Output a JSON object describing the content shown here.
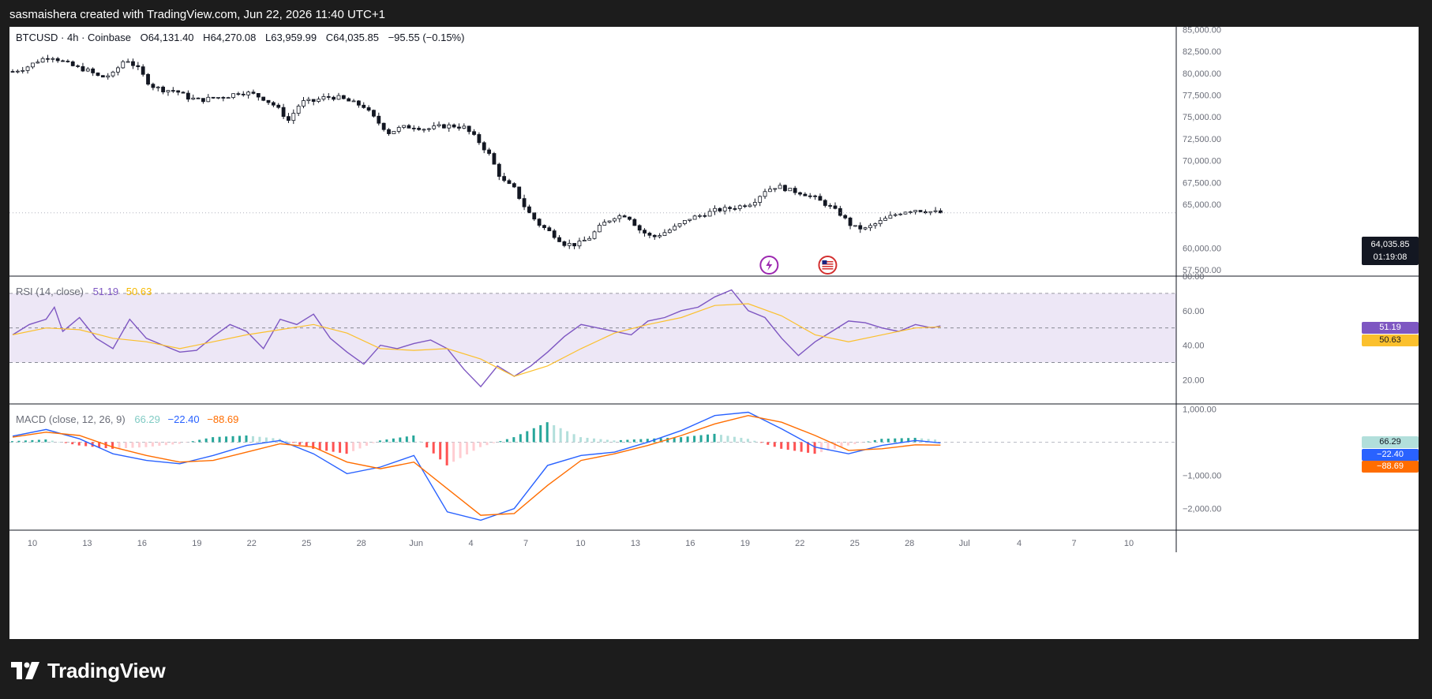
{
  "header": {
    "attribution": "sasmaishera created with TradingView.com, Jun 22, 2026 11:40 UTC+1"
  },
  "footer": {
    "brand": "TradingView"
  },
  "price_legend": {
    "symbol": "BTCUSD · 4h · Coinbase",
    "open_label": "O",
    "open": "64,131.40",
    "high_label": "H",
    "high": "64,270.08",
    "low_label": "L",
    "low": "63,959.99",
    "close_label": "C",
    "close": "64,035.85",
    "change": "−95.55 (−0.15%)"
  },
  "rsi_legend": {
    "name": "RSI (14, close)",
    "value": "51.19",
    "ma": "50.63"
  },
  "macd_legend": {
    "name": "MACD (close, 12, 26, 9)",
    "hist": "66.29",
    "macd": "−22.40",
    "signal": "−88.69"
  },
  "price_axis": {
    "last_price": "64,035.85",
    "countdown": "01:19:08"
  },
  "rsi_axis": {
    "rsi_badge": "51.19",
    "ma_badge": "50.63"
  },
  "macd_axis": {
    "hist_badge": "66.29",
    "macd_badge": "−22.40",
    "signal_badge": "−88.69"
  },
  "colors": {
    "bg": "#1c1c1c",
    "candle": "#131722",
    "rsi": "#7e57c2",
    "rsi_ma": "#fbc02d",
    "rsi_band": "#ede7f6",
    "macd": "#2962ff",
    "signal": "#ff6d00",
    "hist_up_strong": "#26a69a",
    "hist_up_weak": "#b2dfdb",
    "hist_down_strong": "#ff5252",
    "hist_down_weak": "#ffcdd2"
  },
  "icons": [
    "lightning-event-icon",
    "us-flag-event-icon",
    "tradingview-logo-icon"
  ],
  "chart_data": [
    {
      "type": "candlestick",
      "title": "BTCUSD · 4h · Coinbase",
      "x_ticks": [
        "10",
        "13",
        "16",
        "19",
        "22",
        "25",
        "28",
        "Jun",
        "4",
        "7",
        "10",
        "13",
        "16",
        "19",
        "22",
        "25",
        "28",
        "Jul",
        "4",
        "7",
        "10"
      ],
      "y_ticks": [
        "85,000.00",
        "82,500.00",
        "80,000.00",
        "77,500.00",
        "75,000.00",
        "72,500.00",
        "70,000.00",
        "67,500.00",
        "65,000.00",
        "60,000.00",
        "57,500.00"
      ],
      "ylim": [
        56800,
        85300
      ],
      "last_price": 64035.85,
      "close_path": [
        [
          0,
          80200
        ],
        [
          1.5,
          80600
        ],
        [
          3,
          81400
        ],
        [
          4.5,
          82000
        ],
        [
          6,
          81300
        ],
        [
          7.5,
          80700
        ],
        [
          9,
          80300
        ],
        [
          10.5,
          79500
        ],
        [
          12,
          79900
        ],
        [
          13.5,
          81700
        ],
        [
          15,
          80500
        ],
        [
          16.5,
          78600
        ],
        [
          18,
          78100
        ],
        [
          19.5,
          78000
        ],
        [
          21,
          77200
        ],
        [
          22.5,
          76900
        ],
        [
          24,
          77200
        ],
        [
          25.5,
          77300
        ],
        [
          27,
          77800
        ],
        [
          28.5,
          77700
        ],
        [
          30,
          77100
        ],
        [
          31.5,
          76200
        ],
        [
          33,
          74600
        ],
        [
          34.5,
          76700
        ],
        [
          36,
          76800
        ],
        [
          37.5,
          77300
        ],
        [
          39,
          77200
        ],
        [
          40.5,
          76700
        ],
        [
          42,
          76200
        ],
        [
          43.5,
          74600
        ],
        [
          45,
          73200
        ],
        [
          46.5,
          73800
        ],
        [
          48,
          73900
        ],
        [
          49.5,
          73600
        ],
        [
          51,
          73900
        ],
        [
          52.5,
          74000
        ],
        [
          54,
          73800
        ],
        [
          55.5,
          72500
        ],
        [
          57,
          70700
        ],
        [
          58.5,
          67800
        ],
        [
          60,
          66800
        ],
        [
          61.5,
          64300
        ],
        [
          63,
          62700
        ],
        [
          64.5,
          61700
        ],
        [
          66,
          60500
        ],
        [
          67.5,
          60400
        ],
        [
          69,
          61200
        ],
        [
          70.5,
          62700
        ],
        [
          72,
          63600
        ],
        [
          73.5,
          63800
        ],
        [
          75,
          62100
        ],
        [
          76.5,
          61200
        ],
        [
          78,
          61800
        ],
        [
          79.5,
          62500
        ],
        [
          81,
          63400
        ],
        [
          82.5,
          63800
        ],
        [
          84,
          64300
        ],
        [
          85.5,
          64500
        ],
        [
          87,
          64800
        ],
        [
          88.5,
          65200
        ],
        [
          90,
          66600
        ],
        [
          91.5,
          67100
        ],
        [
          93,
          66600
        ],
        [
          94.5,
          66300
        ],
        [
          96,
          65700
        ],
        [
          97.5,
          64900
        ],
        [
          99,
          63900
        ],
        [
          100.5,
          62400
        ],
        [
          102,
          62200
        ],
        [
          103.5,
          62900
        ],
        [
          105,
          63600
        ],
        [
          106.5,
          64200
        ],
        [
          108,
          64400
        ],
        [
          109.5,
          64200
        ],
        [
          111,
          64035.85
        ]
      ],
      "event_icons": [
        "lightning-event-icon",
        "us-flag-event-icon"
      ]
    },
    {
      "type": "line",
      "title": "RSI (14, close)",
      "y_ticks": [
        "80.00",
        "60.00",
        "40.00",
        "20.00"
      ],
      "ylim": [
        6,
        80
      ],
      "band": [
        30,
        70
      ],
      "midline": 50,
      "series": [
        {
          "name": "RSI",
          "x": [
            0,
            2,
            4,
            5,
            6,
            7,
            8,
            10,
            12,
            14,
            16,
            18,
            20,
            22,
            24,
            26,
            28,
            30,
            32,
            34,
            36,
            38,
            40,
            42,
            44,
            46,
            48,
            50,
            52,
            54,
            56,
            58,
            60,
            62,
            64,
            66,
            68,
            70,
            72,
            74,
            76,
            78,
            80,
            82,
            84,
            86,
            88,
            90,
            92,
            94,
            96,
            98,
            100,
            102,
            104,
            106,
            108,
            110,
            111
          ],
          "values": [
            46,
            52,
            55,
            62,
            48,
            52,
            56,
            44,
            38,
            55,
            44,
            40,
            36,
            37,
            45,
            52,
            48,
            38,
            55,
            52,
            58,
            44,
            36,
            29,
            40,
            38,
            41,
            43,
            38,
            26,
            16,
            28,
            22,
            28,
            36,
            45,
            52,
            50,
            48,
            46,
            54,
            56,
            60,
            62,
            68,
            72,
            60,
            56,
            44,
            34,
            42,
            48,
            54,
            53,
            50,
            48,
            52,
            50,
            51.19
          ]
        },
        {
          "name": "RSI MA",
          "x": [
            0,
            4,
            8,
            12,
            16,
            20,
            24,
            28,
            32,
            36,
            40,
            44,
            48,
            52,
            56,
            60,
            64,
            68,
            72,
            76,
            80,
            84,
            88,
            92,
            96,
            100,
            104,
            108,
            111
          ],
          "values": [
            46,
            50,
            49,
            44,
            42,
            38,
            42,
            46,
            49,
            52,
            47,
            38,
            37,
            38,
            32,
            22,
            28,
            38,
            47,
            52,
            56,
            63,
            64,
            57,
            46,
            42,
            46,
            50,
            50.63
          ]
        }
      ]
    },
    {
      "type": "line",
      "title": "MACD (close, 12, 26, 9)",
      "y_ticks": [
        "1,000.00",
        "−1,000.00",
        "−2,000.00"
      ],
      "ylim": [
        -2650,
        1150
      ],
      "series": [
        {
          "name": "MACD",
          "x": [
            0,
            4,
            8,
            12,
            16,
            20,
            24,
            28,
            32,
            36,
            40,
            44,
            48,
            52,
            56,
            60,
            64,
            68,
            72,
            76,
            80,
            84,
            88,
            92,
            96,
            100,
            104,
            108,
            111
          ],
          "values": [
            180,
            380,
            100,
            -350,
            -550,
            -650,
            -400,
            -100,
            50,
            -350,
            -950,
            -750,
            -400,
            -2100,
            -2350,
            -2000,
            -700,
            -400,
            -300,
            0,
            350,
            800,
            900,
            400,
            -150,
            -350,
            -100,
            50,
            -22.4
          ]
        },
        {
          "name": "Signal",
          "x": [
            0,
            4,
            8,
            12,
            16,
            20,
            24,
            28,
            32,
            36,
            40,
            44,
            48,
            52,
            56,
            60,
            64,
            68,
            72,
            76,
            80,
            84,
            88,
            92,
            96,
            100,
            104,
            108,
            111
          ],
          "values": [
            150,
            300,
            200,
            -150,
            -400,
            -600,
            -550,
            -300,
            -50,
            -150,
            -600,
            -800,
            -600,
            -1400,
            -2200,
            -2150,
            -1300,
            -550,
            -350,
            -100,
            200,
            550,
            800,
            600,
            200,
            -250,
            -200,
            -80,
            -88.69
          ]
        },
        {
          "name": "Histogram",
          "x": [
            0,
            4,
            8,
            12,
            16,
            20,
            24,
            28,
            32,
            36,
            40,
            44,
            48,
            52,
            56,
            60,
            64,
            68,
            72,
            76,
            80,
            84,
            88,
            92,
            96,
            100,
            104,
            108,
            111
          ],
          "values": [
            30,
            80,
            -100,
            -200,
            -150,
            -50,
            150,
            200,
            100,
            -200,
            -350,
            50,
            200,
            -700,
            -150,
            150,
            600,
            150,
            50,
            100,
            150,
            250,
            100,
            -200,
            -350,
            -100,
            100,
            130,
            66.29
          ]
        }
      ]
    }
  ]
}
